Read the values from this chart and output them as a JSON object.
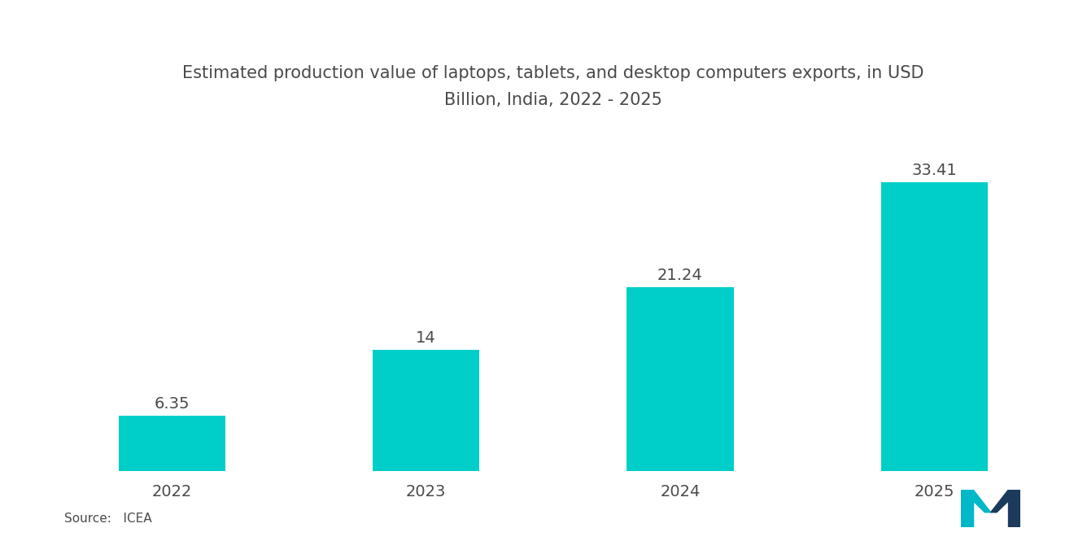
{
  "categories": [
    "2022",
    "2023",
    "2024",
    "2025"
  ],
  "values": [
    6.35,
    14,
    21.24,
    33.41
  ],
  "bar_color": "#00CEC9",
  "value_labels": [
    "6.35",
    "14",
    "21.24",
    "33.41"
  ],
  "title_line1": "Estimated production value of laptops, tablets, and desktop computers exports, in USD",
  "title_line2": "Billion, India, 2022 - 2025",
  "source_text": "Source:   ICEA",
  "background_color": "#FFFFFF",
  "title_color": "#4a4a4a",
  "label_color": "#4a4a4a",
  "tick_color": "#4a4a4a",
  "title_fontsize": 15,
  "label_fontsize": 14,
  "tick_fontsize": 14,
  "source_fontsize": 11,
  "ylim": [
    0,
    42
  ],
  "bar_width": 0.42
}
